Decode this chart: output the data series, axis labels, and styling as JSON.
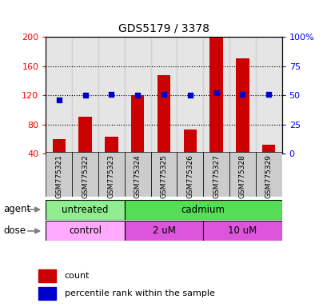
{
  "title": "GDS5179 / 3378",
  "samples": [
    "GSM775321",
    "GSM775322",
    "GSM775323",
    "GSM775324",
    "GSM775325",
    "GSM775326",
    "GSM775327",
    "GSM775328",
    "GSM775329"
  ],
  "counts": [
    60,
    90,
    63,
    120,
    148,
    73,
    200,
    170,
    52
  ],
  "percentiles": [
    46,
    50,
    51,
    50,
    51,
    50,
    52,
    51,
    51
  ],
  "left_ylim": [
    40,
    200
  ],
  "right_ylim": [
    0,
    100
  ],
  "left_yticks": [
    40,
    80,
    120,
    160,
    200
  ],
  "right_yticks": [
    0,
    25,
    50,
    75,
    100
  ],
  "right_yticklabels": [
    "0",
    "25",
    "50",
    "75",
    "100%"
  ],
  "bar_color": "#cc0000",
  "dot_color": "#0000cc",
  "agent_groups": [
    {
      "label": "untreated",
      "start": 0,
      "end": 3,
      "color": "#90ee90"
    },
    {
      "label": "cadmium",
      "start": 3,
      "end": 9,
      "color": "#55dd55"
    }
  ],
  "dose_groups": [
    {
      "label": "control",
      "start": 0,
      "end": 3,
      "color": "#ffaaff"
    },
    {
      "label": "2 uM",
      "start": 3,
      "end": 6,
      "color": "#dd55dd"
    },
    {
      "label": "10 uM",
      "start": 6,
      "end": 9,
      "color": "#dd55dd"
    }
  ],
  "label_agent": "agent",
  "label_dose": "dose",
  "legend_count": "count",
  "legend_pct": "percentile rank within the sample",
  "bg_color": "#ffffff",
  "sample_bg": "#cccccc"
}
